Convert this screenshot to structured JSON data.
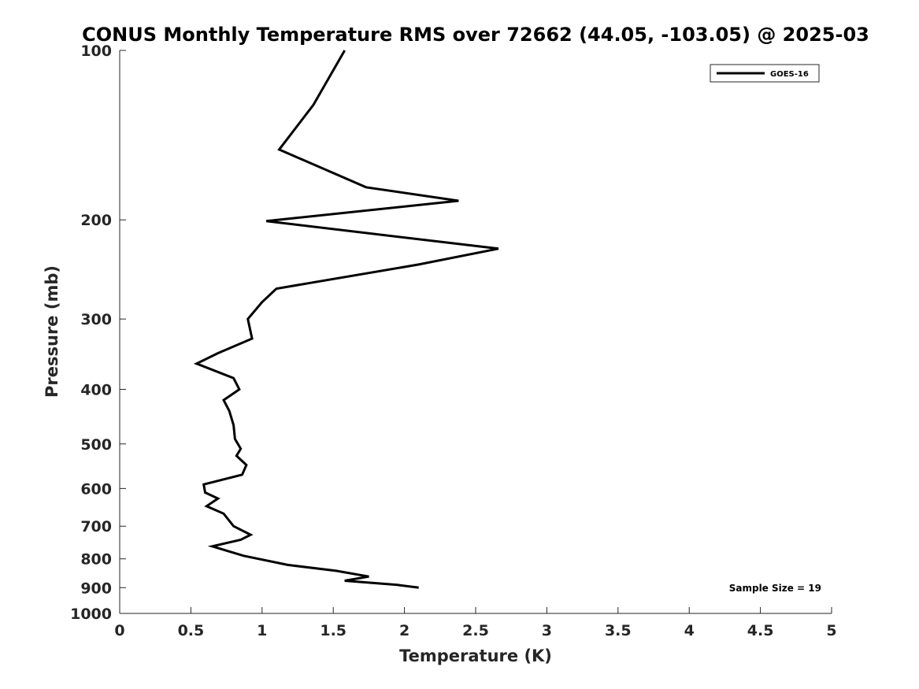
{
  "chart_data": {
    "type": "line",
    "title": "CONUS Monthly Temperature RMS over 72662 (44.05, -103.05) @ 2025-03",
    "xlabel": "Temperature (K)",
    "ylabel": "Pressure (mb)",
    "xlim": [
      0,
      5
    ],
    "ylim": [
      100,
      1000
    ],
    "y_scale": "log",
    "y_reversed": true,
    "x_ticks": [
      0,
      0.5,
      1,
      1.5,
      2,
      2.5,
      3,
      3.5,
      4,
      4.5,
      5
    ],
    "x_tick_labels": [
      "0",
      "0.5",
      "1",
      "1.5",
      "2",
      "2.5",
      "3",
      "3.5",
      "4",
      "4.5",
      "5"
    ],
    "y_ticks": [
      100,
      200,
      300,
      400,
      500,
      600,
      700,
      800,
      900,
      1000
    ],
    "y_tick_labels": [
      "100",
      "200",
      "300",
      "400",
      "500",
      "600",
      "700",
      "800",
      "900",
      "1000"
    ],
    "grid": false,
    "legend_position": "top-right",
    "annotation": "Sample Size = 19",
    "series": [
      {
        "name": "GOES-16",
        "color": "#000000",
        "points": [
          [
            1.58,
            100
          ],
          [
            1.36,
            125
          ],
          [
            1.12,
            150
          ],
          [
            1.73,
            175
          ],
          [
            2.38,
            185
          ],
          [
            1.03,
            201
          ],
          [
            2.66,
            225
          ],
          [
            2.1,
            240
          ],
          [
            1.1,
            265
          ],
          [
            1.0,
            280
          ],
          [
            0.9,
            300
          ],
          [
            0.93,
            325
          ],
          [
            0.69,
            345
          ],
          [
            0.54,
            360
          ],
          [
            0.8,
            382
          ],
          [
            0.84,
            400
          ],
          [
            0.73,
            418
          ],
          [
            0.77,
            437
          ],
          [
            0.8,
            463
          ],
          [
            0.81,
            490
          ],
          [
            0.85,
            510
          ],
          [
            0.82,
            525
          ],
          [
            0.89,
            545
          ],
          [
            0.86,
            567
          ],
          [
            0.59,
            590
          ],
          [
            0.6,
            610
          ],
          [
            0.69,
            625
          ],
          [
            0.61,
            645
          ],
          [
            0.73,
            665
          ],
          [
            0.8,
            700
          ],
          [
            0.92,
            725
          ],
          [
            0.85,
            740
          ],
          [
            0.65,
            760
          ],
          [
            0.87,
            790
          ],
          [
            1.18,
            820
          ],
          [
            1.52,
            840
          ],
          [
            1.75,
            860
          ],
          [
            1.58,
            875
          ],
          [
            1.95,
            890
          ],
          [
            2.1,
            900
          ]
        ]
      }
    ]
  }
}
